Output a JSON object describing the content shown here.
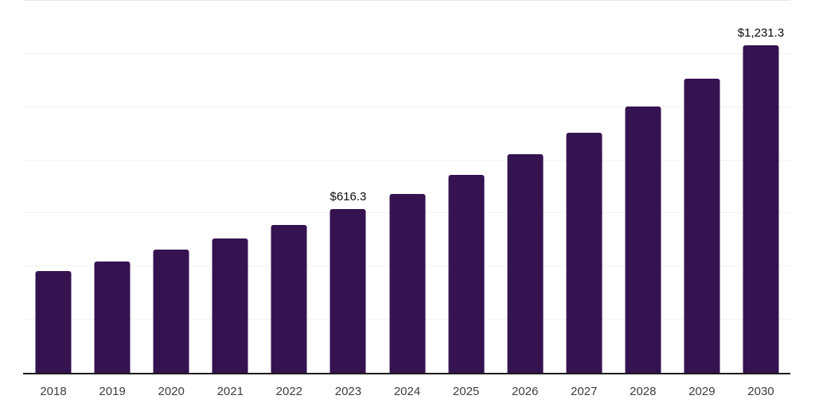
{
  "chart_data": {
    "type": "bar",
    "title": "",
    "xlabel": "",
    "ylabel": "",
    "categories": [
      "2018",
      "2019",
      "2020",
      "2021",
      "2022",
      "2023",
      "2024",
      "2025",
      "2026",
      "2027",
      "2028",
      "2029",
      "2030"
    ],
    "values": [
      384,
      420,
      464,
      507,
      556,
      616.3,
      674,
      744,
      823,
      905,
      1001,
      1106,
      1231.3
    ],
    "point_labels": [
      "",
      "",
      "",
      "",
      "",
      "$616.3",
      "",
      "",
      "",
      "",
      "",
      "",
      "$1,231.3"
    ],
    "ylim": [
      0,
      1400
    ],
    "gridline_step": 200,
    "grid": true,
    "y_tick_labels_visible": false,
    "legend_position": "none"
  },
  "colors": {
    "background": "#ffffff",
    "bar": "#351250",
    "gridline": "#f2f2f2",
    "top_gridline": "#e8e8e8",
    "axis_line": "#1c1c1c",
    "tick_label": "#3d3d3d",
    "data_label": "#0a0a0a"
  }
}
